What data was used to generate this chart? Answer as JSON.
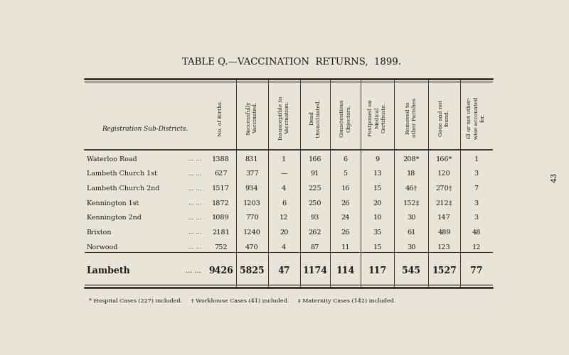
{
  "title": "TABLE Q.—VACCINATION  RETURNS,  1899.",
  "bg_color": "#e8e4d8",
  "text_color": "#1a1a1a",
  "page_number": "43",
  "col_headers": [
    "No. of Births.",
    "Successfully\nVaccinated.",
    "Insusceptible to\nVaccination.",
    "Dead\nUnvaccinated.",
    "Conscientious\nObjectors.",
    "Postponed on\nMedical\nCertificate.",
    "Removed to\nother Parishes",
    "Gone and not\nfound.",
    "Ill or not other-\nwise accounted\nfor."
  ],
  "row_label_header": "Registration Sub-Districts.",
  "rows": [
    [
      "Waterloo Road",
      "1388",
      "831",
      "1",
      "166",
      "6",
      "9",
      "208*",
      "166*",
      "1"
    ],
    [
      "Lambeth Church 1st",
      "627",
      "377",
      "—",
      "91",
      "5",
      "13",
      "18",
      "120",
      "3"
    ],
    [
      "Lambeth Church 2nd",
      "1517",
      "934",
      "4",
      "225",
      "16",
      "15",
      "46†",
      "270†",
      "7"
    ],
    [
      "Kennington 1st",
      "1872",
      "1203",
      "6",
      "250",
      "26",
      "20",
      "152‡",
      "212‡",
      "3"
    ],
    [
      "Kennington 2nd",
      "1089",
      "770",
      "12",
      "93",
      "24",
      "10",
      "30",
      "147",
      "3"
    ],
    [
      "Brixton",
      "2181",
      "1240",
      "20",
      "262",
      "26",
      "35",
      "61",
      "489",
      "48"
    ],
    [
      "Norwood",
      "752",
      "470",
      "4",
      "87",
      "11",
      "15",
      "30",
      "123",
      "12"
    ]
  ],
  "total_row": [
    "Lambeth",
    "9426",
    "5825",
    "47",
    "1174",
    "114",
    "117",
    "545",
    "1527",
    "77"
  ],
  "footnotes": "* Hospital Cases (227) included.     † Workhouse Cases (41) included.     ‡ Maternity Cases (142) included."
}
